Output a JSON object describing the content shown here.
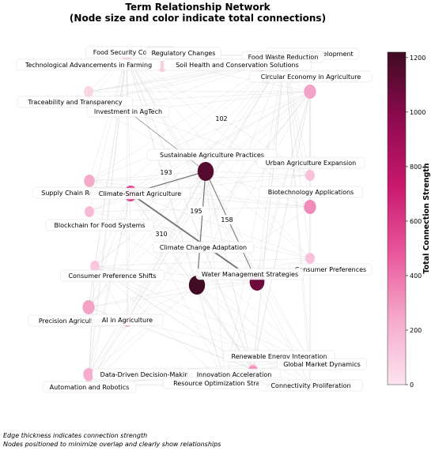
{
  "chart_data": {
    "type": "network",
    "title_lines": [
      "Term Relationship Network",
      "(Node size and color indicate total connections)"
    ],
    "nodes": [
      {
        "label": "Food Security Concerns",
        "strength": 80
      },
      {
        "label": "Regulatory Changes",
        "strength": 90
      },
      {
        "label": "Sustainable Development",
        "strength": 100
      },
      {
        "label": "Food Waste Reduction",
        "strength": 70
      },
      {
        "label": "Technological Advancements in Farming",
        "strength": 60
      },
      {
        "label": "Soil Health and Conservation Solutions",
        "strength": 120
      },
      {
        "label": "Circular Economy in Agriculture",
        "strength": 260
      },
      {
        "label": "Traceability and Transparency",
        "strength": 200
      },
      {
        "label": "Investment in AgTech",
        "strength": 90
      },
      {
        "label": "Sustainable Agriculture Practices",
        "strength": 1150
      },
      {
        "label": "Urban Agriculture Expansion",
        "strength": 150
      },
      {
        "label": "Supply Chain Resilience",
        "strength": 240
      },
      {
        "label": "Climate-Smart Agriculture",
        "strength": 560
      },
      {
        "label": "Biotechnology Applications",
        "strength": 330
      },
      {
        "label": "Blockchain for Food Systems",
        "strength": 170
      },
      {
        "label": "Climate Change Adaptation",
        "strength": 1210
      },
      {
        "label": "Consumer Preferences",
        "strength": 140
      },
      {
        "label": "Water Management Strategies",
        "strength": 1080
      },
      {
        "label": "Consumer Preference Shifts",
        "strength": 120
      },
      {
        "label": "Precision Agriculture",
        "strength": 260
      },
      {
        "label": "AI in Agriculture",
        "strength": 230
      },
      {
        "label": "Renewable Energy Integration",
        "strength": 120
      },
      {
        "label": "Global Market Dynamics",
        "strength": 110
      },
      {
        "label": "Data-Driven Decision-Making",
        "strength": 230
      },
      {
        "label": "Innovation Acceleration",
        "strength": 320
      },
      {
        "label": "Automation and Robotics",
        "strength": 160
      },
      {
        "label": "Resource Optimization Strategies",
        "strength": 110
      },
      {
        "label": "Connectivity Proliferation",
        "strength": 100
      }
    ],
    "labeled_edges": [
      {
        "source": "Sustainable Agriculture Practices",
        "target": "Investment in AgTech",
        "weight": 102
      },
      {
        "source": "Sustainable Agriculture Practices",
        "target": "Climate-Smart Agriculture",
        "weight": 193
      },
      {
        "source": "Sustainable Agriculture Practices",
        "target": "Climate Change Adaptation",
        "weight": 195
      },
      {
        "source": "Sustainable Agriculture Practices",
        "target": "Water Management Strategies",
        "weight": 158
      },
      {
        "source": "Climate-Smart Agriculture",
        "target": "Water Management Strategies",
        "weight": 310
      }
    ],
    "colorbar": {
      "label": "Total Connection Strength",
      "min": 0,
      "max": 1220,
      "ticks": [
        0,
        200,
        400,
        600,
        800,
        1000,
        1200
      ],
      "colors": [
        "#fce4ef",
        "#f5a9cb",
        "#e8559a",
        "#c8186e",
        "#8e0a4f",
        "#3e0b22"
      ]
    },
    "notes": [
      "Edge thickness indicates connection strength",
      "Nodes positioned to minimize overlap and clearly show relationships"
    ]
  }
}
